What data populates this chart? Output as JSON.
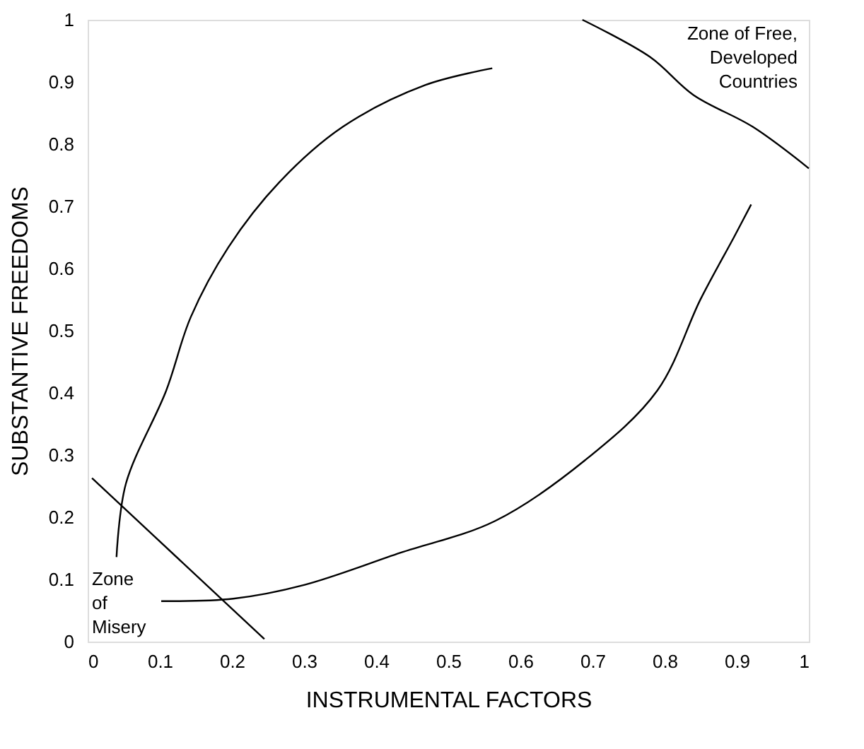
{
  "chart_data": {
    "type": "line",
    "xlabel": "INSTRUMENTAL  FACTORS",
    "ylabel": "SUBSTANTIVE  FREEDOMS",
    "xlim": [
      0,
      1
    ],
    "ylim": [
      0,
      1
    ],
    "xticks": [
      0,
      0.1,
      0.2,
      0.3,
      0.4,
      0.5,
      0.6,
      0.7,
      0.8,
      0.9,
      1
    ],
    "yticks": [
      0,
      0.1,
      0.2,
      0.3,
      0.4,
      0.5,
      0.6,
      0.7,
      0.8,
      0.9,
      1
    ],
    "grid": false,
    "marker": "none",
    "line_style": "solid",
    "series": [
      {
        "color": "#000000",
        "x": [
          0.04,
          0.053,
          0.109,
          0.143,
          0.195,
          0.266,
          0.354,
          0.468,
          0.561
        ],
        "values": [
          0.136,
          0.254,
          0.404,
          0.522,
          0.634,
          0.739,
          0.828,
          0.895,
          0.922
        ]
      },
      {
        "color": "#000000",
        "x": [
          0.102,
          0.202,
          0.3,
          0.434,
          0.565,
          0.69,
          0.79,
          0.85,
          0.896,
          0.92
        ],
        "values": [
          0.065,
          0.069,
          0.091,
          0.143,
          0.194,
          0.292,
          0.404,
          0.551,
          0.65,
          0.703
        ]
      },
      {
        "color": "#000000",
        "x": [
          0.006,
          0.245
        ],
        "values": [
          0.263,
          0.004
        ]
      },
      {
        "color": "#000000",
        "x": [
          0.686,
          0.78,
          0.84,
          0.922,
          1.0
        ],
        "values": [
          1.0,
          0.94,
          0.879,
          0.828,
          0.761
        ]
      }
    ],
    "annotations": [
      "Zone\nof\nMisery",
      "Zone of Free,\nDeveloped\nCountries"
    ]
  }
}
